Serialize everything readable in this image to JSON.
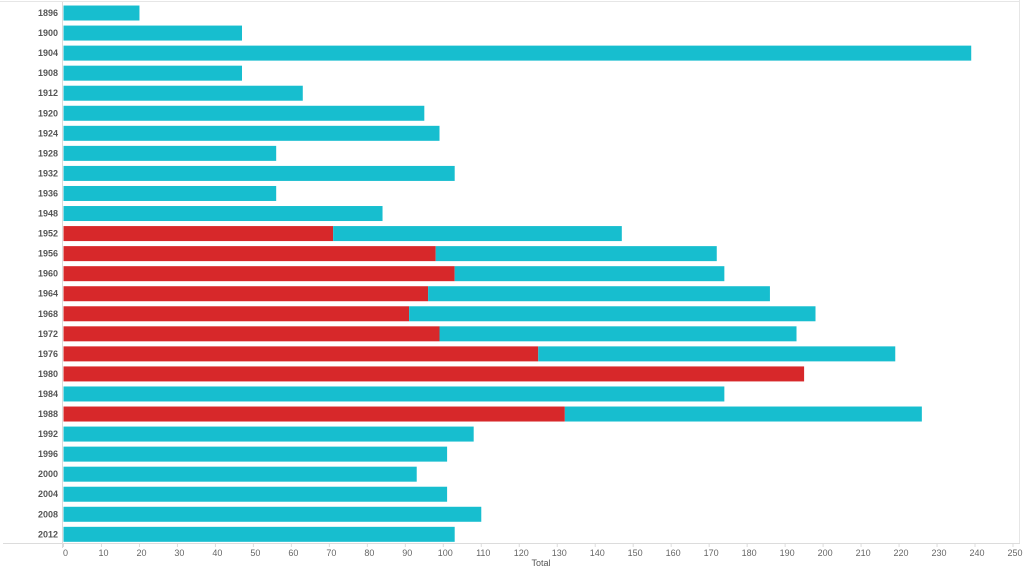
{
  "chart_data": {
    "type": "bar",
    "orientation": "horizontal",
    "stacked": true,
    "xlabel": "Total",
    "ylabel": "",
    "xlim": [
      0,
      250
    ],
    "xticks": [
      0,
      10,
      20,
      30,
      40,
      50,
      60,
      70,
      80,
      90,
      100,
      110,
      120,
      130,
      140,
      150,
      160,
      170,
      180,
      190,
      200,
      210,
      220,
      230,
      240,
      250
    ],
    "grid": false,
    "legend": "none",
    "categories": [
      "1896",
      "1900",
      "1904",
      "1908",
      "1912",
      "1920",
      "1924",
      "1928",
      "1932",
      "1936",
      "1948",
      "1952",
      "1956",
      "1960",
      "1964",
      "1968",
      "1972",
      "1976",
      "1980",
      "1984",
      "1988",
      "1992",
      "1996",
      "2000",
      "2004",
      "2008",
      "2012"
    ],
    "series": [
      {
        "color": "#d7282a",
        "values": [
          0,
          0,
          0,
          0,
          0,
          0,
          0,
          0,
          0,
          0,
          0,
          71,
          98,
          103,
          96,
          91,
          99,
          125,
          195,
          0,
          132,
          0,
          0,
          0,
          0,
          0,
          0
        ]
      },
      {
        "color": "#17becf",
        "values": [
          20,
          47,
          239,
          47,
          63,
          95,
          99,
          56,
          103,
          56,
          84,
          76,
          74,
          71,
          90,
          107,
          94,
          94,
          0,
          174,
          94,
          108,
          101,
          93,
          101,
          110,
          103
        ]
      }
    ]
  }
}
